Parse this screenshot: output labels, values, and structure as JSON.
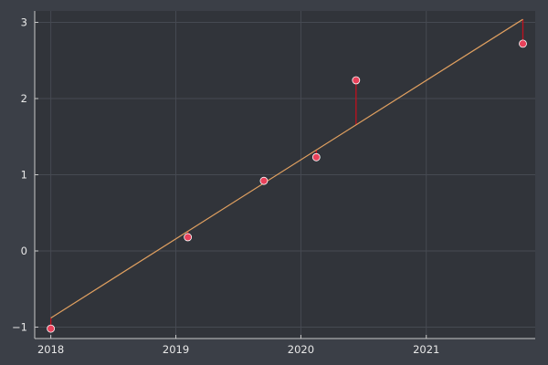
{
  "chart_data": {
    "type": "scatter",
    "title": "",
    "xlabel": "",
    "ylabel": "",
    "x_type": "date",
    "xlim": [
      "2017-11-15",
      "2021-11-15"
    ],
    "ylim": [
      -1.15,
      3.15
    ],
    "x_ticks": [
      {
        "value": "2018-01-01",
        "label": "2018"
      },
      {
        "value": "2019-01-01",
        "label": "2019"
      },
      {
        "value": "2020-01-01",
        "label": "2020"
      },
      {
        "value": "2021-01-01",
        "label": "2021"
      }
    ],
    "y_ticks": [
      {
        "value": -1,
        "label": "−1"
      },
      {
        "value": 0,
        "label": "0"
      },
      {
        "value": 1,
        "label": "1"
      },
      {
        "value": 2,
        "label": "2"
      },
      {
        "value": 3,
        "label": "3"
      }
    ],
    "grid": true,
    "legend": "none",
    "series": [
      {
        "points": [
          {
            "x": "2018-01-01",
            "y": -1.02
          },
          {
            "x": "2019-02-05",
            "y": 0.18
          },
          {
            "x": "2019-09-15",
            "y": 0.92
          },
          {
            "x": "2020-02-15",
            "y": 1.23
          },
          {
            "x": "2020-06-10",
            "y": 2.24
          },
          {
            "x": "2021-10-10",
            "y": 2.72
          }
        ],
        "color": "#e8415a"
      }
    ],
    "fit_line": {
      "color": "#e0a060",
      "start": {
        "x": "2018-01-01",
        "y": -0.88
      },
      "end": {
        "x": "2021-10-10",
        "y": 3.04
      }
    },
    "residual_color": "#c0101e"
  }
}
